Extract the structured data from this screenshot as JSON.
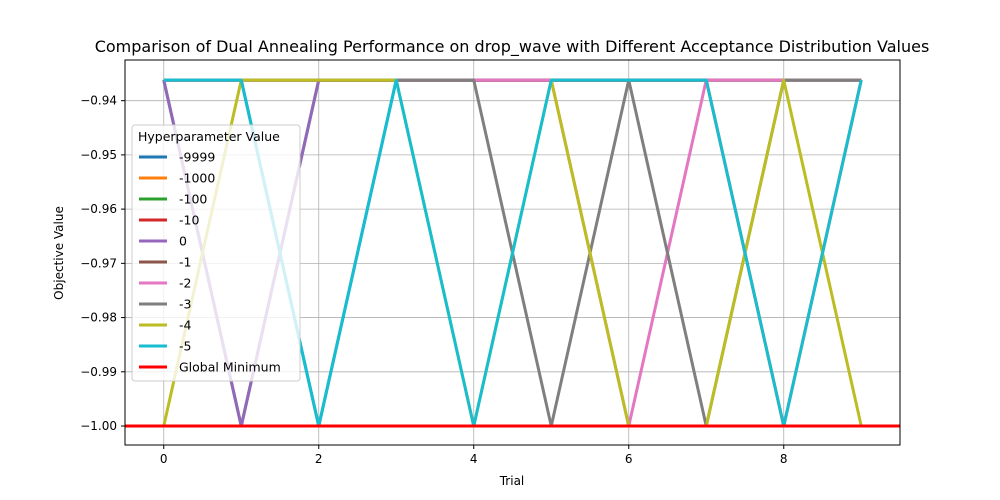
{
  "chart_data": {
    "type": "line",
    "title": "Comparison of Dual Annealing Performance on drop_wave with Different Acceptance Distribution Values",
    "xlabel": "Trial",
    "ylabel": "Objective Value",
    "xlim": [
      -0.5,
      9.5
    ],
    "ylim": [
      -1.0035,
      -0.9325
    ],
    "xticks": [
      0,
      2,
      4,
      6,
      8
    ],
    "xtick_labels": [
      "0",
      "2",
      "4",
      "6",
      "8"
    ],
    "yticks": [
      -1.0,
      -0.99,
      -0.98,
      -0.97,
      -0.96,
      -0.95,
      -0.94
    ],
    "ytick_labels": [
      "−1.00",
      "−0.99",
      "−0.98",
      "−0.97",
      "−0.96",
      "−0.95",
      "−0.94"
    ],
    "grid": true,
    "legend": {
      "title": "Hyperparameter Value",
      "placement": "center-left"
    },
    "x": [
      0,
      1,
      2,
      3,
      4,
      5,
      6,
      7,
      8,
      9
    ],
    "series": [
      {
        "name": "-9999",
        "color": "#1f77b4",
        "values": [
          -0.9362,
          -0.9362,
          -1.0,
          -0.9362,
          -0.9362,
          -0.9362,
          -0.9362,
          -0.9362,
          -0.9362,
          -0.9362
        ]
      },
      {
        "name": "-1000",
        "color": "#ff7f0e",
        "values": [
          -0.9362,
          -0.9362,
          -0.9362,
          -0.9362,
          -0.9362,
          -0.9362,
          -0.9362,
          -0.9362,
          -0.9362,
          -0.9362
        ]
      },
      {
        "name": "-100",
        "color": "#2ca02c",
        "values": [
          -0.9362,
          -1.0,
          -0.9362,
          -0.9362,
          -0.9362,
          -0.9362,
          -0.9362,
          -0.9362,
          -0.9362,
          -0.9362
        ]
      },
      {
        "name": "-10",
        "color": "#d62728",
        "values": [
          -0.9362,
          -0.9362,
          -0.9362,
          -0.9362,
          -0.9362,
          -0.9362,
          -0.9362,
          -0.9362,
          -1.0,
          -0.9362
        ]
      },
      {
        "name": "0",
        "color": "#9467bd",
        "values": [
          -0.9362,
          -1.0,
          -0.9362,
          -0.9362,
          -0.9362,
          -0.9362,
          -0.9362,
          -0.9362,
          -0.9362,
          -0.9362
        ]
      },
      {
        "name": "-1",
        "color": "#8c564b",
        "values": [
          -0.9362,
          -0.9362,
          -0.9362,
          -0.9362,
          -0.9362,
          -0.9362,
          -0.9362,
          -0.9362,
          -0.9362,
          -0.9362
        ]
      },
      {
        "name": "-2",
        "color": "#e377c2",
        "values": [
          -0.9362,
          -0.9362,
          -0.9362,
          -0.9362,
          -0.9362,
          -0.9362,
          -1.0,
          -0.9362,
          -0.9362,
          -0.9362
        ]
      },
      {
        "name": "-3",
        "color": "#7f7f7f",
        "values": [
          -0.9362,
          -0.9362,
          -0.9362,
          -0.9362,
          -0.9362,
          -1.0,
          -0.9362,
          -1.0,
          -0.9362,
          -0.9362
        ]
      },
      {
        "name": "-4",
        "color": "#bcbd22",
        "values": [
          -1.0,
          -0.9362,
          -0.9362,
          -0.9362,
          -1.0,
          -0.9362,
          -1.0,
          -1.0,
          -0.9362,
          -1.0
        ]
      },
      {
        "name": "-5",
        "color": "#17becf",
        "values": [
          -0.9362,
          -0.9362,
          -1.0,
          -0.9362,
          -1.0,
          -0.9362,
          -0.9362,
          -0.9362,
          -1.0,
          -0.9362
        ]
      }
    ],
    "reference_line": {
      "name": "Global Minimum",
      "value": -1.0,
      "color": "#ff0000"
    }
  }
}
